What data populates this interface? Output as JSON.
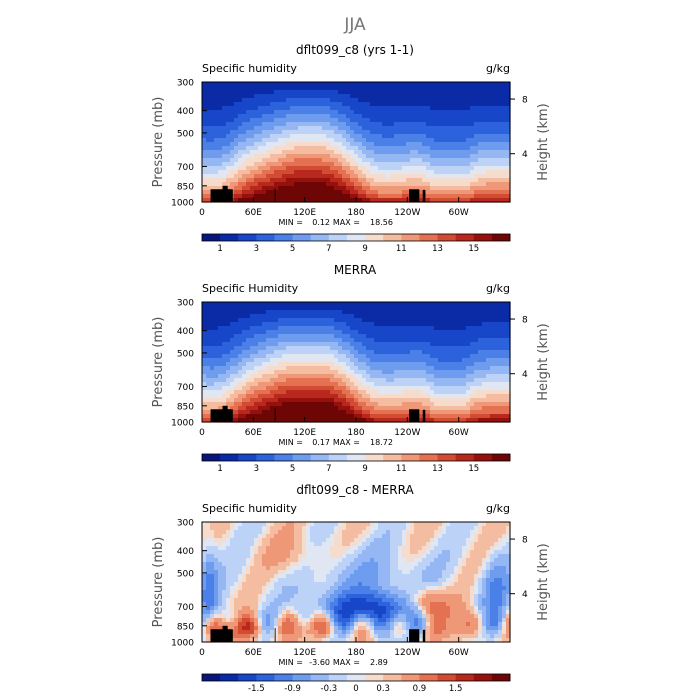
{
  "suptitle": "JJA",
  "chart_data": [
    {
      "type": "heatmap",
      "title": "dflt099_c8 (yrs 1-1)",
      "variable_label": "Specific humidity",
      "units": "g/kg",
      "xlabel": "",
      "ylabel": "Pressure (mb)",
      "y2label": "Height (km)",
      "x_ticks": [
        "0",
        "60E",
        "120E",
        "180",
        "120W",
        "60W"
      ],
      "y_ticks": [
        "300",
        "400",
        "500",
        "700",
        "850",
        "1000"
      ],
      "y2_ticks": [
        "8",
        "4"
      ],
      "min": "0.12",
      "max": "18.56",
      "colorbar_labels": [
        "1",
        "3",
        "5",
        "7",
        "9",
        "11",
        "13",
        "15"
      ],
      "colormap": "humidity",
      "levels": [
        0,
        1,
        2,
        3,
        4,
        5,
        6,
        7,
        8,
        9,
        10,
        11,
        12,
        13,
        14,
        15,
        16
      ]
    },
    {
      "type": "heatmap",
      "title": "MERRA",
      "variable_label": "Specific Humidity",
      "units": "g/kg",
      "xlabel": "",
      "ylabel": "Pressure (mb)",
      "y2label": "Height (km)",
      "x_ticks": [
        "0",
        "60E",
        "120E",
        "180",
        "120W",
        "60W"
      ],
      "y_ticks": [
        "300",
        "400",
        "500",
        "700",
        "850",
        "1000"
      ],
      "y2_ticks": [
        "8",
        "4"
      ],
      "min": "0.17",
      "max": "18.72",
      "colorbar_labels": [
        "1",
        "3",
        "5",
        "7",
        "9",
        "11",
        "13",
        "15"
      ],
      "colormap": "humidity",
      "levels": [
        0,
        1,
        2,
        3,
        4,
        5,
        6,
        7,
        8,
        9,
        10,
        11,
        12,
        13,
        14,
        15,
        16
      ]
    },
    {
      "type": "heatmap",
      "title": "dflt099_c8 - MERRA",
      "variable_label": "Specific humidity",
      "units": "g/kg",
      "xlabel": "",
      "ylabel": "Pressure (mb)",
      "y2label": "Height (km)",
      "x_ticks": [
        "0",
        "60E",
        "120E",
        "180",
        "120W",
        "60W"
      ],
      "y_ticks": [
        "300",
        "400",
        "500",
        "700",
        "850",
        "1000"
      ],
      "y2_ticks": [
        "8",
        "4"
      ],
      "min": "-3.60",
      "max": "2.89",
      "colorbar_labels": [
        "-1.5",
        "-0.9",
        "-0.3",
        "0",
        "0.3",
        "0.9",
        "1.5"
      ],
      "colormap": "difference",
      "levels": [
        -2.1,
        -1.8,
        -1.5,
        -1.2,
        -0.9,
        -0.6,
        -0.3,
        -0.1,
        0,
        0.1,
        0.3,
        0.6,
        0.9,
        1.2,
        1.5,
        1.8,
        2.1
      ]
    }
  ],
  "colors": {
    "humidity": [
      "#08157a",
      "#0a2aa6",
      "#1846c8",
      "#2c62dc",
      "#4a80e8",
      "#6e9df0",
      "#95b8f4",
      "#bcd2f6",
      "#e0e6f2",
      "#f6dccc",
      "#f4bca0",
      "#ee9878",
      "#e47152",
      "#d24c34",
      "#b8281c",
      "#96110e",
      "#6e0606"
    ],
    "difference": [
      "#08157a",
      "#0a2aa6",
      "#1846c8",
      "#2c62dc",
      "#4a80e8",
      "#6e9df0",
      "#95b8f4",
      "#bcd2f6",
      "#e0e6f2",
      "#f6dccc",
      "#f4bca0",
      "#ee9878",
      "#e47152",
      "#d24c34",
      "#b8281c",
      "#96110e",
      "#6e0606"
    ],
    "terrain": "#000000"
  }
}
